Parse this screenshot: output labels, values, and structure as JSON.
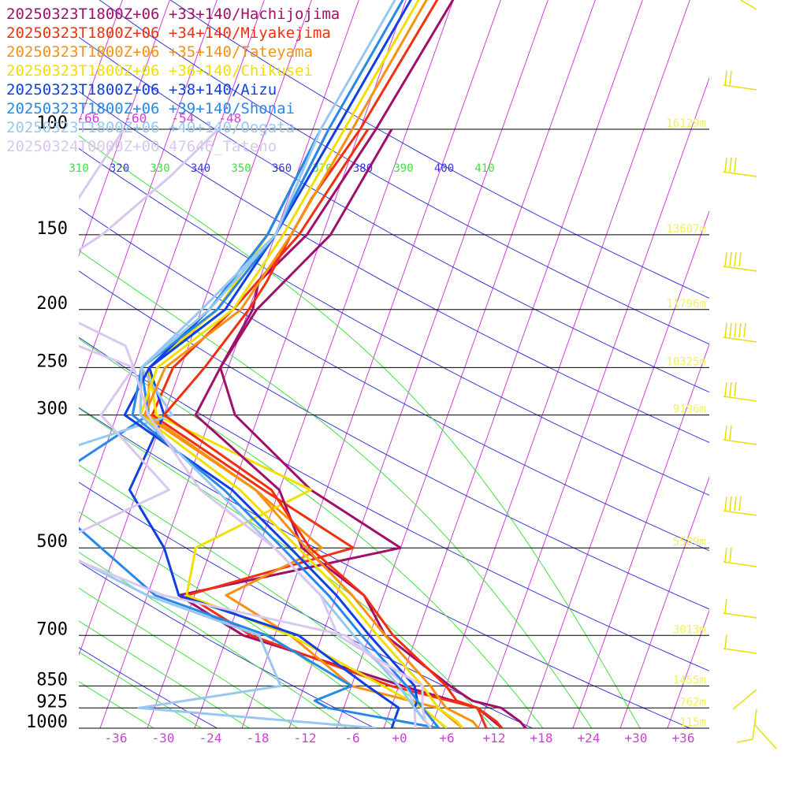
{
  "chart_data": {
    "type": "line",
    "title": "",
    "xlabel": "",
    "ylabel": "",
    "pressure_axis": {
      "ticks": [
        100,
        150,
        200,
        250,
        300,
        500,
        700,
        850,
        925,
        1000
      ],
      "labels": [
        "100",
        "150",
        "200",
        "250",
        "300",
        "500",
        "700",
        "850",
        "925",
        "1000"
      ],
      "heights": [
        "16129m",
        "13607m",
        "11796m",
        "10325m",
        "9196m",
        "5589m",
        "3013m",
        "1455m",
        "762m",
        "115m"
      ]
    },
    "temperature_axis": {
      "ticks": [
        -36,
        -30,
        -24,
        -18,
        -12,
        -6,
        0,
        6,
        12,
        18,
        24,
        30,
        36
      ],
      "labels": [
        "-36",
        "-30",
        "-24",
        "-18",
        "-12",
        "-6",
        "+0",
        "+6",
        "+12",
        "+18",
        "+24",
        "+30",
        "+36"
      ]
    },
    "upper_temperature_labels": [
      {
        "t": -66,
        "label": "-66"
      },
      {
        "t": -60,
        "label": "-60"
      },
      {
        "t": -54,
        "label": "-54"
      },
      {
        "t": -48,
        "label": "-48"
      }
    ],
    "theta_e_labels": [
      "310",
      "320",
      "330",
      "340",
      "350",
      "360",
      "370",
      "380",
      "390",
      "400",
      "410"
    ],
    "series": [
      {
        "name": "20250323T1800Z+06 +33+140/Hachijojima",
        "color": "#a0106a",
        "temperature": [
          [
            -10,
            1.5
          ],
          [
            -14,
            10
          ],
          [
            -24.5,
            50
          ],
          [
            -30,
            100
          ],
          [
            -34,
            150
          ],
          [
            -38,
            180
          ],
          [
            -37.5,
            200
          ],
          [
            -39,
            250
          ],
          [
            -40,
            300
          ],
          [
            -26,
            400
          ],
          [
            -20.5,
            500
          ],
          [
            -10.5,
            600
          ],
          [
            -6,
            700
          ],
          [
            4.5,
            850
          ],
          [
            8,
            900
          ],
          [
            12,
            925
          ],
          [
            15,
            975
          ],
          [
            16,
            1000
          ]
        ],
        "dewpoint": [
          [
            -28,
            100
          ],
          [
            -31,
            150
          ],
          [
            -37,
            200
          ],
          [
            -39,
            250
          ],
          [
            -35,
            300
          ],
          [
            -22,
            400
          ],
          [
            -8,
            500
          ],
          [
            -34,
            600
          ],
          [
            -24,
            700
          ],
          [
            -1.5,
            850
          ],
          [
            9,
            925
          ],
          [
            13,
            1000
          ]
        ]
      },
      {
        "name": "20250323T1800Z+06 +34+140/Miyakejima",
        "color": "#f03010",
        "temperature": [
          [
            -11,
            1.5
          ],
          [
            -16,
            10
          ],
          [
            -26.5,
            50
          ],
          [
            -32,
            100
          ],
          [
            -35,
            130
          ],
          [
            -36,
            150
          ],
          [
            -37,
            180
          ],
          [
            -38,
            200
          ],
          [
            -41,
            250
          ],
          [
            -44,
            300
          ],
          [
            -27,
            400
          ],
          [
            -19.5,
            500
          ],
          [
            -10.5,
            600
          ],
          [
            -5,
            700
          ],
          [
            4,
            850
          ],
          [
            6,
            900
          ],
          [
            9,
            925
          ],
          [
            12,
            975
          ],
          [
            13,
            1000
          ]
        ],
        "dewpoint": [
          [
            -31,
            100
          ],
          [
            -35,
            150
          ],
          [
            -40,
            200
          ],
          [
            -45,
            250
          ],
          [
            -45.5,
            300
          ],
          [
            -28,
            400
          ],
          [
            -14,
            500
          ],
          [
            -33,
            600
          ],
          [
            -23,
            700
          ],
          [
            -3,
            850
          ],
          [
            9,
            925
          ],
          [
            11,
            1000
          ]
        ]
      },
      {
        "name": "20250323T1800Z+06 +35+140/Tateyama",
        "color": "#f89010",
        "temperature": [
          [
            -12,
            1.5
          ],
          [
            -17,
            10
          ],
          [
            -28,
            50
          ],
          [
            -33,
            100
          ],
          [
            -36,
            150
          ],
          [
            -39,
            200
          ],
          [
            -46,
            250
          ],
          [
            -46.5,
            300
          ],
          [
            -29,
            400
          ],
          [
            -20,
            500
          ],
          [
            -12,
            600
          ],
          [
            -6,
            700
          ],
          [
            2,
            850
          ],
          [
            4,
            900
          ],
          [
            5,
            925
          ],
          [
            9,
            975
          ],
          [
            10,
            1000
          ]
        ],
        "dewpoint": [
          [
            -36,
            100
          ],
          [
            -38,
            150
          ],
          [
            -42,
            200
          ],
          [
            -48,
            250
          ],
          [
            -46,
            300
          ],
          [
            -29,
            400
          ],
          [
            -18,
            500
          ],
          [
            -28,
            600
          ],
          [
            -18,
            700
          ],
          [
            -8,
            850
          ],
          [
            4,
            925
          ],
          [
            8,
            1000
          ]
        ]
      },
      {
        "name": "20250323T1800Z+06 +36+140/Chikusei",
        "color": "#f0e000",
        "temperature": [
          [
            -13,
            1.5
          ],
          [
            -18,
            10
          ],
          [
            -29,
            50
          ],
          [
            -34,
            100
          ],
          [
            -37,
            150
          ],
          [
            -40,
            200
          ],
          [
            -47,
            250
          ],
          [
            -47,
            300
          ],
          [
            -31,
            400
          ],
          [
            -21,
            500
          ],
          [
            -13,
            600
          ],
          [
            -7,
            700
          ],
          [
            1,
            850
          ],
          [
            3,
            900
          ],
          [
            4,
            925
          ],
          [
            7,
            975
          ],
          [
            8,
            1000
          ]
        ],
        "dewpoint": [
          [
            -37,
            100
          ],
          [
            -39,
            150
          ],
          [
            -42,
            200
          ],
          [
            -48,
            250
          ],
          [
            -45,
            300
          ],
          [
            -22,
            400
          ],
          [
            -34,
            500
          ],
          [
            -33,
            600
          ],
          [
            -18,
            700
          ],
          [
            -4,
            850
          ],
          [
            2,
            925
          ],
          [
            6,
            1000
          ]
        ]
      },
      {
        "name": "20250323T1800Z+06 +38+140/Aizu",
        "color": "#1040e0",
        "temperature": [
          [
            -14,
            1.5
          ],
          [
            -19,
            10
          ],
          [
            -30,
            50
          ],
          [
            -35,
            100
          ],
          [
            -38,
            150
          ],
          [
            -41,
            200
          ],
          [
            -48,
            250
          ],
          [
            -49,
            300
          ],
          [
            -32,
            400
          ],
          [
            -22,
            500
          ],
          [
            -14,
            600
          ],
          [
            -8,
            700
          ],
          [
            0,
            850
          ],
          [
            1,
            900
          ],
          [
            1,
            925
          ],
          [
            3,
            975
          ],
          [
            4,
            1000
          ]
        ],
        "dewpoint": [
          [
            -37,
            100
          ],
          [
            -39,
            150
          ],
          [
            -43,
            200
          ],
          [
            -48,
            250
          ],
          [
            -44,
            300
          ],
          [
            -45,
            400
          ],
          [
            -38,
            500
          ],
          [
            -34,
            600
          ],
          [
            -17,
            700
          ],
          [
            -6,
            850
          ],
          [
            -1,
            925
          ],
          [
            -1,
            1000
          ]
        ]
      },
      {
        "name": "20250323T1800Z+06 +39+140/Shonai",
        "color": "#2888e8",
        "temperature": [
          [
            -15,
            1.5
          ],
          [
            -20,
            10
          ],
          [
            -31,
            50
          ],
          [
            -36,
            100
          ],
          [
            -38,
            150
          ],
          [
            -42,
            200
          ],
          [
            -49,
            250
          ],
          [
            -48,
            300
          ],
          [
            -33,
            400
          ],
          [
            -23,
            500
          ],
          [
            -15,
            600
          ],
          [
            -9,
            700
          ],
          [
            -1,
            850
          ],
          [
            1,
            900
          ],
          [
            2,
            925
          ],
          [
            4,
            975
          ],
          [
            5,
            1000
          ]
        ],
        "dewpoint": [
          [
            -37,
            100
          ],
          [
            -39,
            150
          ],
          [
            -43,
            200
          ],
          [
            -49,
            250
          ],
          [
            -46,
            300
          ],
          [
            -57,
            400
          ],
          [
            -46,
            500
          ],
          [
            -37,
            600
          ],
          [
            -21,
            700
          ],
          [
            -8,
            850
          ],
          [
            -12,
            900
          ],
          [
            -10,
            925
          ],
          [
            5,
            1000
          ]
        ]
      },
      {
        "name": "20250323T1800Z+06 +40+140/Oogata",
        "color": "#98c8f0",
        "temperature": [
          [
            -16,
            1.5
          ],
          [
            -21,
            10
          ],
          [
            -32,
            50
          ],
          [
            -37,
            100
          ],
          [
            -38,
            150
          ],
          [
            -43,
            200
          ],
          [
            -49,
            250
          ],
          [
            -47,
            300
          ],
          [
            -34,
            400
          ],
          [
            -24,
            500
          ],
          [
            -16,
            600
          ],
          [
            -10,
            700
          ],
          [
            -2,
            850
          ],
          [
            0,
            900
          ],
          [
            1,
            925
          ],
          [
            3,
            975
          ],
          [
            4,
            1000
          ]
        ],
        "dewpoint": [
          [
            -36,
            100
          ],
          [
            -38,
            150
          ],
          [
            -44,
            200
          ],
          [
            -49,
            250
          ],
          [
            -43,
            300
          ],
          [
            -57,
            350
          ],
          [
            -58,
            400
          ],
          [
            -52,
            500
          ],
          [
            -38,
            600
          ],
          [
            -22,
            700
          ],
          [
            -17,
            850
          ],
          [
            -34,
            925
          ],
          [
            -3,
            1000
          ]
        ]
      },
      {
        "name": "20250324T0000Z+00 47646_Tateno",
        "color": "#d8c8f0",
        "temperature": [
          [
            -50,
            100
          ],
          [
            -54,
            120
          ],
          [
            -60,
            150
          ],
          [
            -66,
            175
          ],
          [
            -63,
            200
          ],
          [
            -52,
            230
          ],
          [
            -50,
            250
          ],
          [
            -46,
            300
          ],
          [
            -36,
            400
          ],
          [
            -24,
            500
          ],
          [
            -16,
            600
          ],
          [
            -12,
            700
          ],
          [
            1,
            850
          ],
          [
            2,
            925
          ],
          [
            3,
            975
          ],
          [
            4,
            1000
          ]
        ],
        "dewpoint": [
          [
            -62,
            100
          ],
          [
            -66,
            150
          ],
          [
            -68,
            175
          ],
          [
            -62,
            200
          ],
          [
            -58,
            230
          ],
          [
            -50,
            250
          ],
          [
            -52,
            300
          ],
          [
            -40,
            400
          ],
          [
            -53,
            500
          ],
          [
            -36,
            600
          ],
          [
            -11,
            700
          ],
          [
            -1,
            850
          ],
          [
            1,
            925
          ],
          [
            2,
            1000
          ]
        ]
      }
    ],
    "legend": "top-left",
    "grid": true
  }
}
